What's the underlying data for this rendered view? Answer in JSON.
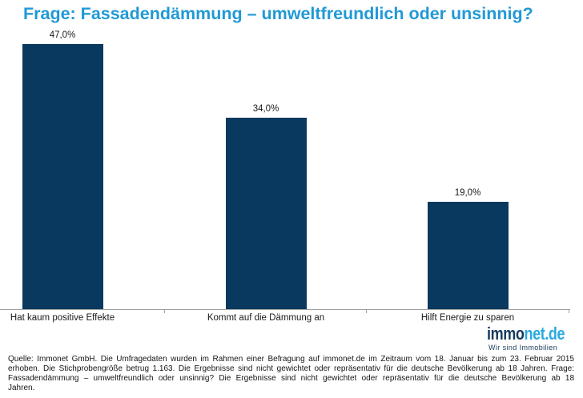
{
  "title": "Frage: Fassadendämmung – umweltfreundlich oder unsinnig?",
  "chart_data": {
    "type": "bar",
    "title": "Frage: Fassadendämmung – umweltfreundlich oder unsinnig?",
    "categories": [
      "Hat kaum positive Effekte",
      "Kommt auf die Dämmung an",
      "Hilft Energie zu sparen"
    ],
    "values": [
      47.0,
      34.0,
      19.0
    ],
    "value_labels": [
      "47,0%",
      "34,0%",
      "19,0%"
    ],
    "unit": "%",
    "xlabel": "",
    "ylabel": "",
    "ylim": [
      0,
      50
    ],
    "grid": false,
    "legend": false,
    "bar_color": "#09395e"
  },
  "branding": {
    "logo_dark": "immo",
    "logo_light": "net.de",
    "tagline": "Wir sind Immobilien",
    "dark_color": "#17395d",
    "light_color": "#29a9e0"
  },
  "footer": {
    "source_text": "Quelle: Immonet GmbH. Die Umfragedaten wurden im Rahmen einer Befragung auf immonet.de im Zeitraum vom 18. Januar bis zum 23. Februar 2015 erhoben. Die Stichprobengröße betrug 1.163. Die Ergebnisse sind nicht gewichtet oder repräsentativ für die deutsche Bevölkerung ab 18 Jahren. Frage: Fassadendämmung – umweltfreundlich oder unsinnig? Die Ergebnisse sind nicht gewichtet oder repräsentativ für die deutsche Bevölkerung ab 18 Jahren."
  },
  "colors": {
    "title": "#2199d6",
    "bar": "#09395e",
    "axis": "#a0a0a0",
    "text": "#1a1a1a"
  }
}
